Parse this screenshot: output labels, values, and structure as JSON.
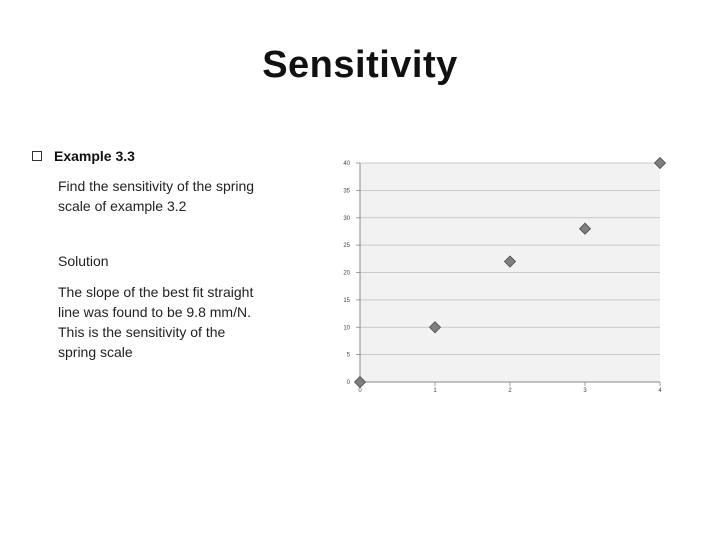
{
  "slide": {
    "title": "Sensitivity",
    "example_heading": "Example 3.3",
    "question": "Find the sensitivity of the spring scale of example 3.2",
    "solution_heading": "Solution",
    "solution_text": "The slope of the best fit straight line was found to be 9.8 mm/N.  This is the sensitivity of the spring scale"
  },
  "chart_data": {
    "type": "scatter",
    "x": [
      0,
      1,
      2,
      3,
      4
    ],
    "y": [
      0,
      10,
      22,
      28,
      40
    ],
    "xlim": [
      0,
      4
    ],
    "ylim": [
      0,
      40
    ],
    "x_ticks": [
      0,
      1,
      2,
      3,
      4
    ],
    "y_ticks": [
      0,
      5,
      10,
      15,
      20,
      25,
      30,
      35,
      40
    ],
    "grid": "horizontal",
    "marker": "diamond",
    "marker_color": "#7f7f7f",
    "plot_bg": "#f2f2f2"
  }
}
